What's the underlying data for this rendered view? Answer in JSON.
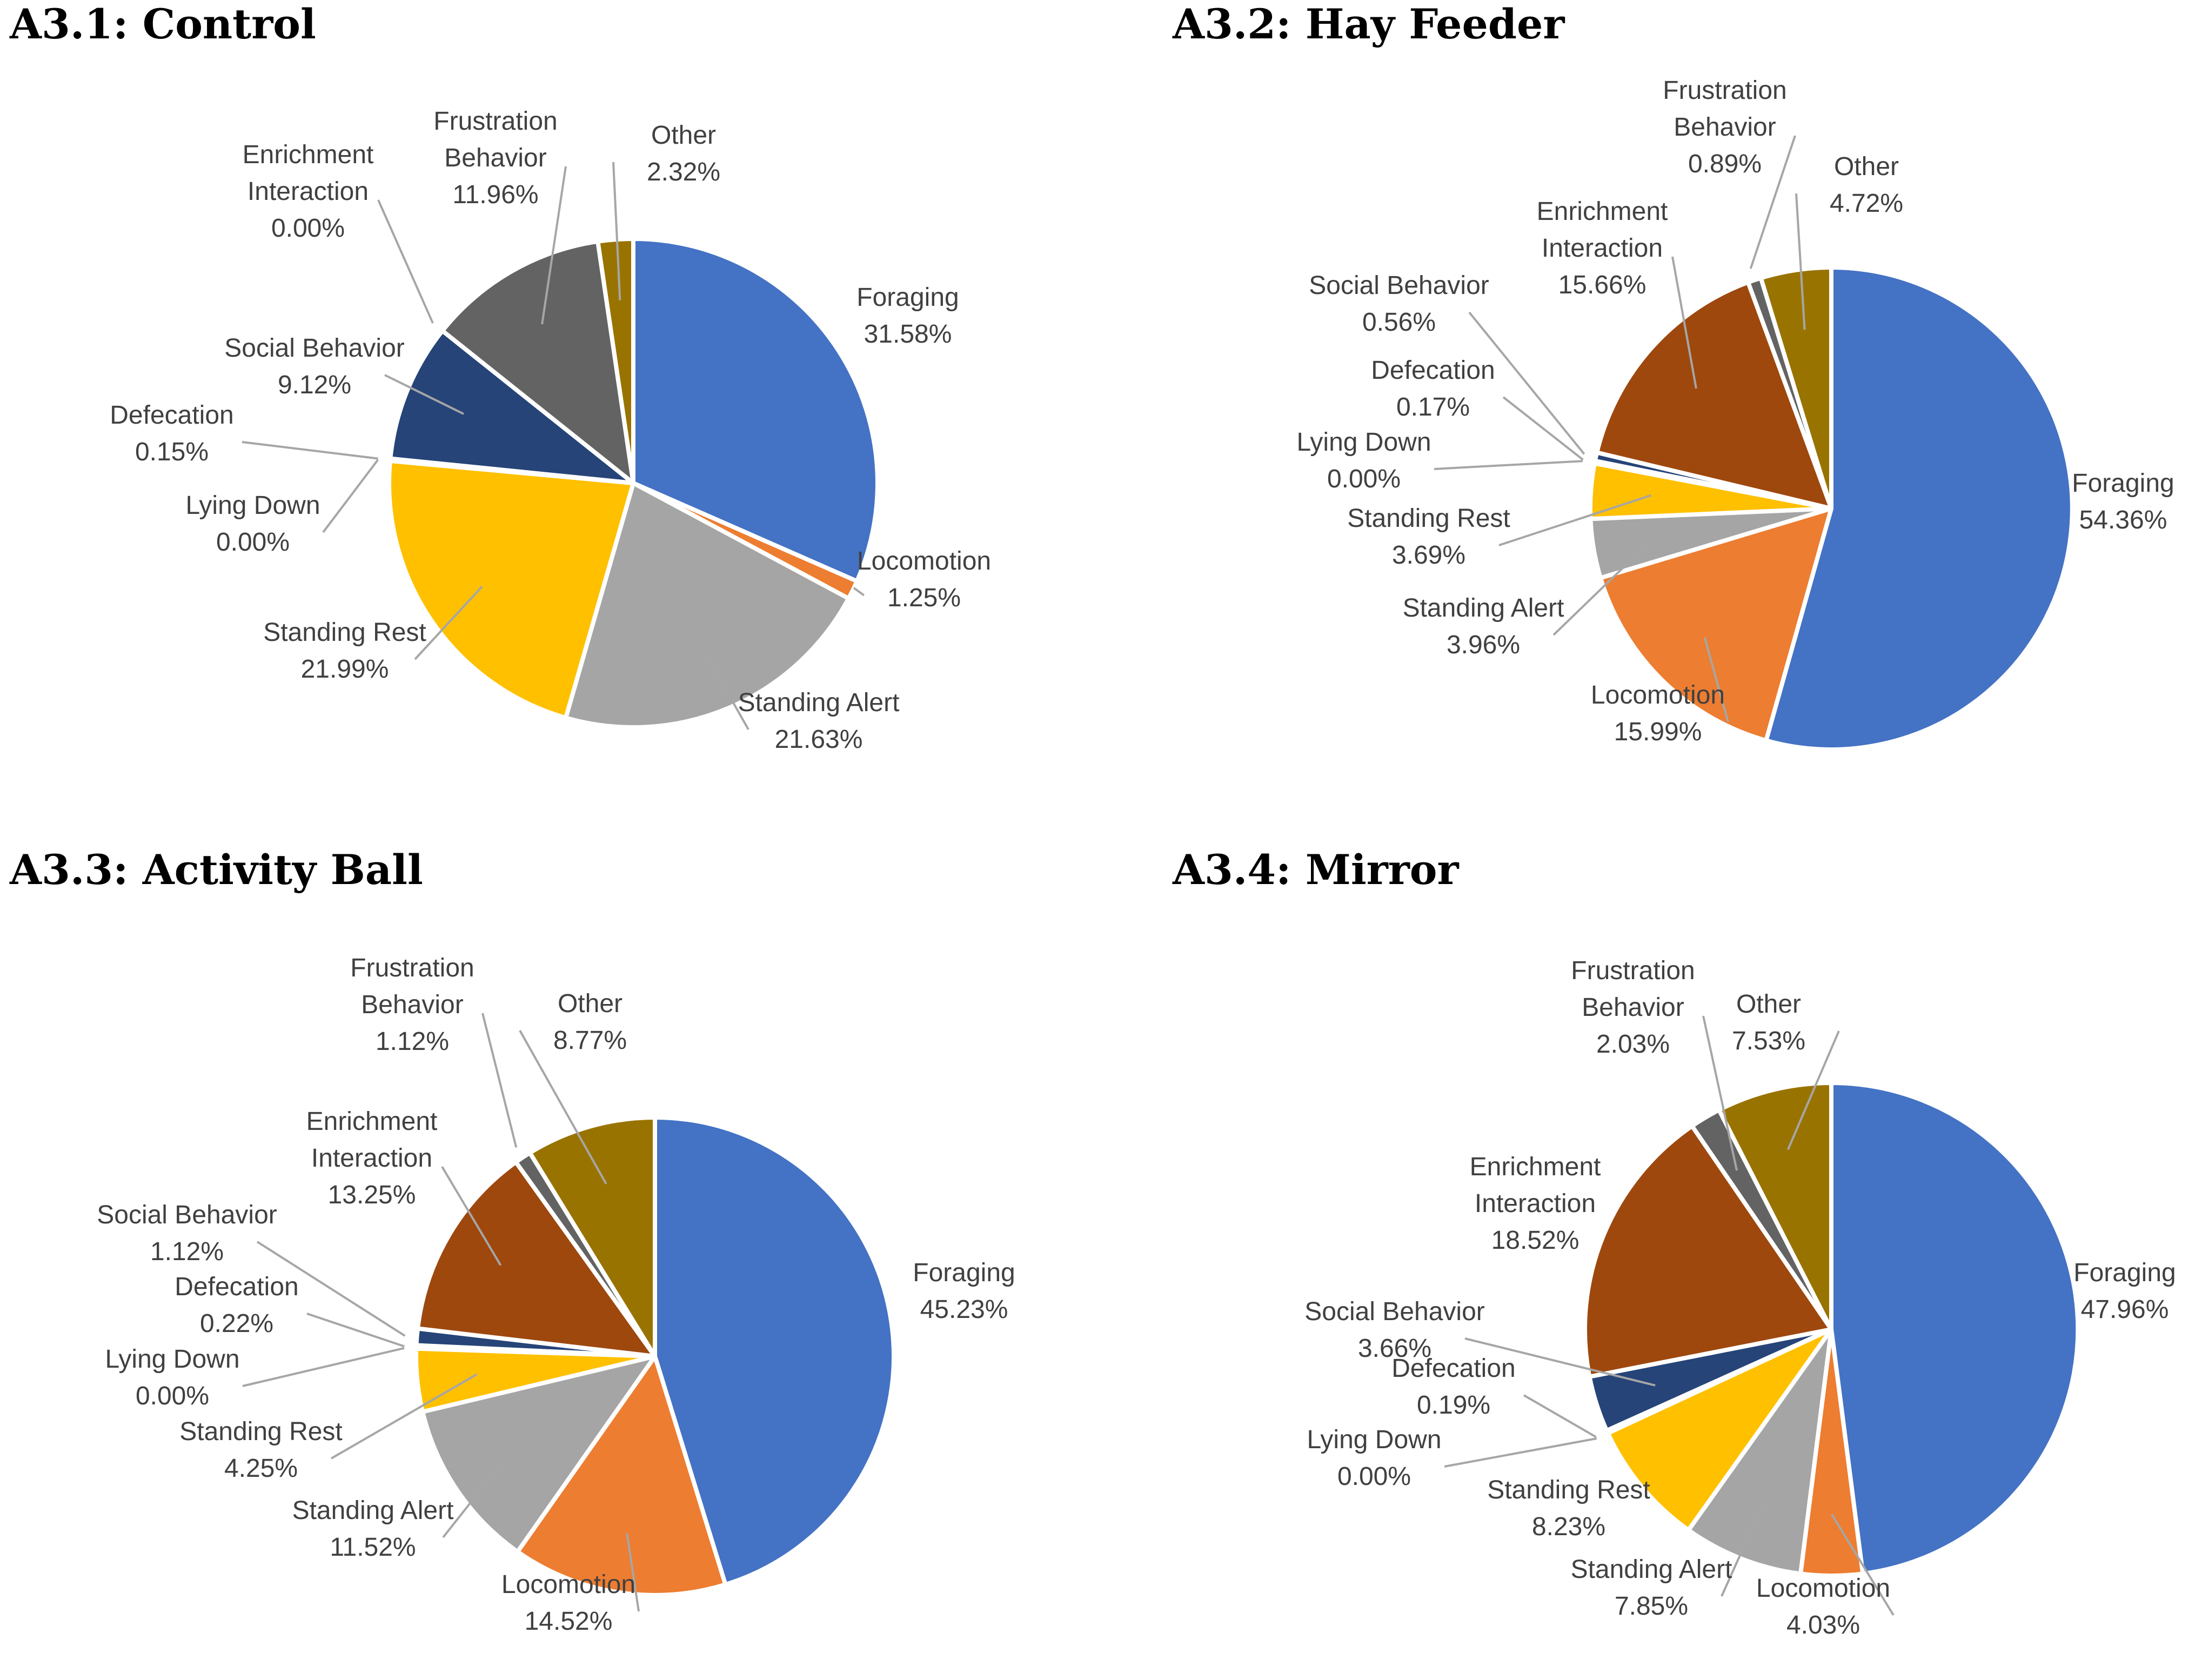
{
  "chart_data": [
    {
      "type": "pie",
      "title": "A3.1: Control",
      "slices": [
        {
          "label": "Foraging",
          "value": 31.58,
          "display": "31.58%",
          "color": "#4472C4"
        },
        {
          "label": "Locomotion",
          "value": 1.25,
          "display": "1.25%",
          "color": "#ED7D31"
        },
        {
          "label": "Standing Alert",
          "value": 21.63,
          "display": "21.63%",
          "color": "#A5A5A5"
        },
        {
          "label": "Standing Rest",
          "value": 21.99,
          "display": "21.99%",
          "color": "#FFC000"
        },
        {
          "label": "Lying Down",
          "value": 0.0,
          "display": "0.00%",
          "color": "#5B9BD5"
        },
        {
          "label": "Defecation",
          "value": 0.15,
          "display": "0.15%",
          "color": "#70AD47"
        },
        {
          "label": "Social Behavior",
          "value": 9.12,
          "display": "9.12%",
          "color": "#264478"
        },
        {
          "label": "Enrichment Interaction",
          "value": 0.0,
          "display": "0.00%",
          "color": "#9E480E"
        },
        {
          "label": "Frustration Behavior",
          "value": 11.96,
          "display": "11.96%",
          "color": "#636363"
        },
        {
          "label": "Other",
          "value": 2.32,
          "display": "2.32%",
          "color": "#997300"
        }
      ]
    },
    {
      "type": "pie",
      "title": "A3.2: Hay Feeder",
      "slices": [
        {
          "label": "Foraging",
          "value": 54.36,
          "display": "54.36%",
          "color": "#4472C4"
        },
        {
          "label": "Locomotion",
          "value": 15.99,
          "display": "15.99%",
          "color": "#ED7D31"
        },
        {
          "label": "Standing Alert",
          "value": 3.96,
          "display": "3.96%",
          "color": "#A5A5A5"
        },
        {
          "label": "Standing Rest",
          "value": 3.69,
          "display": "3.69%",
          "color": "#FFC000"
        },
        {
          "label": "Lying Down",
          "value": 0.0,
          "display": "0.00%",
          "color": "#5B9BD5"
        },
        {
          "label": "Defecation",
          "value": 0.17,
          "display": "0.17%",
          "color": "#70AD47"
        },
        {
          "label": "Social Behavior",
          "value": 0.56,
          "display": "0.56%",
          "color": "#264478"
        },
        {
          "label": "Enrichment Interaction",
          "value": 15.66,
          "display": "15.66%",
          "color": "#9E480E"
        },
        {
          "label": "Frustration Behavior",
          "value": 0.89,
          "display": "0.89%",
          "color": "#636363"
        },
        {
          "label": "Other",
          "value": 4.72,
          "display": "4.72%",
          "color": "#997300"
        }
      ]
    },
    {
      "type": "pie",
      "title": "A3.3: Activity Ball",
      "slices": [
        {
          "label": "Foraging",
          "value": 45.23,
          "display": "45.23%",
          "color": "#4472C4"
        },
        {
          "label": "Locomotion",
          "value": 14.52,
          "display": "14.52%",
          "color": "#ED7D31"
        },
        {
          "label": "Standing Alert",
          "value": 11.52,
          "display": "11.52%",
          "color": "#A5A5A5"
        },
        {
          "label": "Standing Rest",
          "value": 4.25,
          "display": "4.25%",
          "color": "#FFC000"
        },
        {
          "label": "Lying Down",
          "value": 0.0,
          "display": "0.00%",
          "color": "#5B9BD5"
        },
        {
          "label": "Defecation",
          "value": 0.22,
          "display": "0.22%",
          "color": "#70AD47"
        },
        {
          "label": "Social Behavior",
          "value": 1.12,
          "display": "1.12%",
          "color": "#264478"
        },
        {
          "label": "Enrichment Interaction",
          "value": 13.25,
          "display": "13.25%",
          "color": "#9E480E"
        },
        {
          "label": "Frustration Behavior",
          "value": 1.12,
          "display": "1.12%",
          "color": "#636363"
        },
        {
          "label": "Other",
          "value": 8.77,
          "display": "8.77%",
          "color": "#997300"
        }
      ]
    },
    {
      "type": "pie",
      "title": "A3.4: Mirror",
      "slices": [
        {
          "label": "Foraging",
          "value": 47.96,
          "display": "47.96%",
          "color": "#4472C4"
        },
        {
          "label": "Locomotion",
          "value": 4.03,
          "display": "4.03%",
          "color": "#ED7D31"
        },
        {
          "label": "Standing Alert",
          "value": 7.85,
          "display": "7.85%",
          "color": "#A5A5A5"
        },
        {
          "label": "Standing Rest",
          "value": 8.23,
          "display": "8.23%",
          "color": "#FFC000"
        },
        {
          "label": "Lying Down",
          "value": 0.0,
          "display": "0.00%",
          "color": "#5B9BD5"
        },
        {
          "label": "Defecation",
          "value": 0.19,
          "display": "0.19%",
          "color": "#70AD47"
        },
        {
          "label": "Social Behavior",
          "value": 3.66,
          "display": "3.66%",
          "color": "#264478"
        },
        {
          "label": "Enrichment Interaction",
          "value": 18.52,
          "display": "18.52%",
          "color": "#9E480E"
        },
        {
          "label": "Frustration Behavior",
          "value": 2.03,
          "display": "2.03%",
          "color": "#636363"
        },
        {
          "label": "Other",
          "value": 7.53,
          "display": "7.53%",
          "color": "#997300"
        }
      ]
    }
  ]
}
